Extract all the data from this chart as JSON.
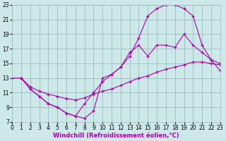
{
  "background_color": "#cce8e8",
  "grid_color": "#9bbcbc",
  "line_color": "#aa00aa",
  "marker": "+",
  "xlim": [
    0,
    23
  ],
  "ylim": [
    7,
    23
  ],
  "xticks": [
    0,
    1,
    2,
    3,
    4,
    5,
    6,
    7,
    8,
    9,
    10,
    11,
    12,
    13,
    14,
    15,
    16,
    17,
    18,
    19,
    20,
    21,
    22,
    23
  ],
  "yticks": [
    7,
    9,
    11,
    13,
    15,
    17,
    19,
    21,
    23
  ],
  "series": [
    {
      "x": [
        1,
        2,
        3,
        4,
        5,
        6,
        7,
        8,
        9,
        10,
        11,
        12,
        13,
        14,
        15,
        16,
        17,
        18,
        19,
        20,
        21,
        22,
        23
      ],
      "y": [
        13,
        11.5,
        10.5,
        9.5,
        9,
        8.2,
        7.8,
        7.5,
        8.5,
        13.0,
        13.5,
        14.5,
        16.5,
        17.5,
        16.0,
        17.5,
        17.5,
        17.2,
        19.0,
        17.5,
        16.5,
        15.5,
        15.0
      ]
    },
    {
      "x": [
        1,
        2,
        3,
        4,
        5,
        6,
        7,
        8,
        9,
        10,
        11,
        12,
        13,
        14,
        15,
        16,
        17,
        18,
        19,
        20,
        21,
        22,
        23
      ],
      "y": [
        13,
        11.5,
        10.5,
        9.5,
        9,
        8.2,
        7.8,
        9.5,
        11.0,
        12.5,
        13.5,
        14.5,
        16.0,
        18.5,
        21.5,
        22.5,
        23.0,
        23.0,
        22.5,
        21.5,
        17.5,
        15.5,
        14.0
      ]
    },
    {
      "x": [
        0,
        1,
        2,
        3,
        4,
        5,
        6,
        7,
        8,
        9,
        10,
        11,
        12,
        13,
        14,
        15,
        16,
        17,
        18,
        19,
        20,
        21,
        22,
        23
      ],
      "y": [
        13,
        13,
        11.8,
        11.2,
        10.8,
        10.5,
        10.2,
        10.0,
        10.3,
        10.8,
        11.2,
        11.5,
        12.0,
        12.5,
        13.0,
        13.3,
        13.8,
        14.2,
        14.5,
        14.8,
        15.2,
        15.2,
        15.0,
        14.8
      ]
    }
  ],
  "xlabel": "Windchill (Refroidissement éolien,°C)",
  "tick_fontsize": 5.5,
  "label_fontsize": 6.0
}
